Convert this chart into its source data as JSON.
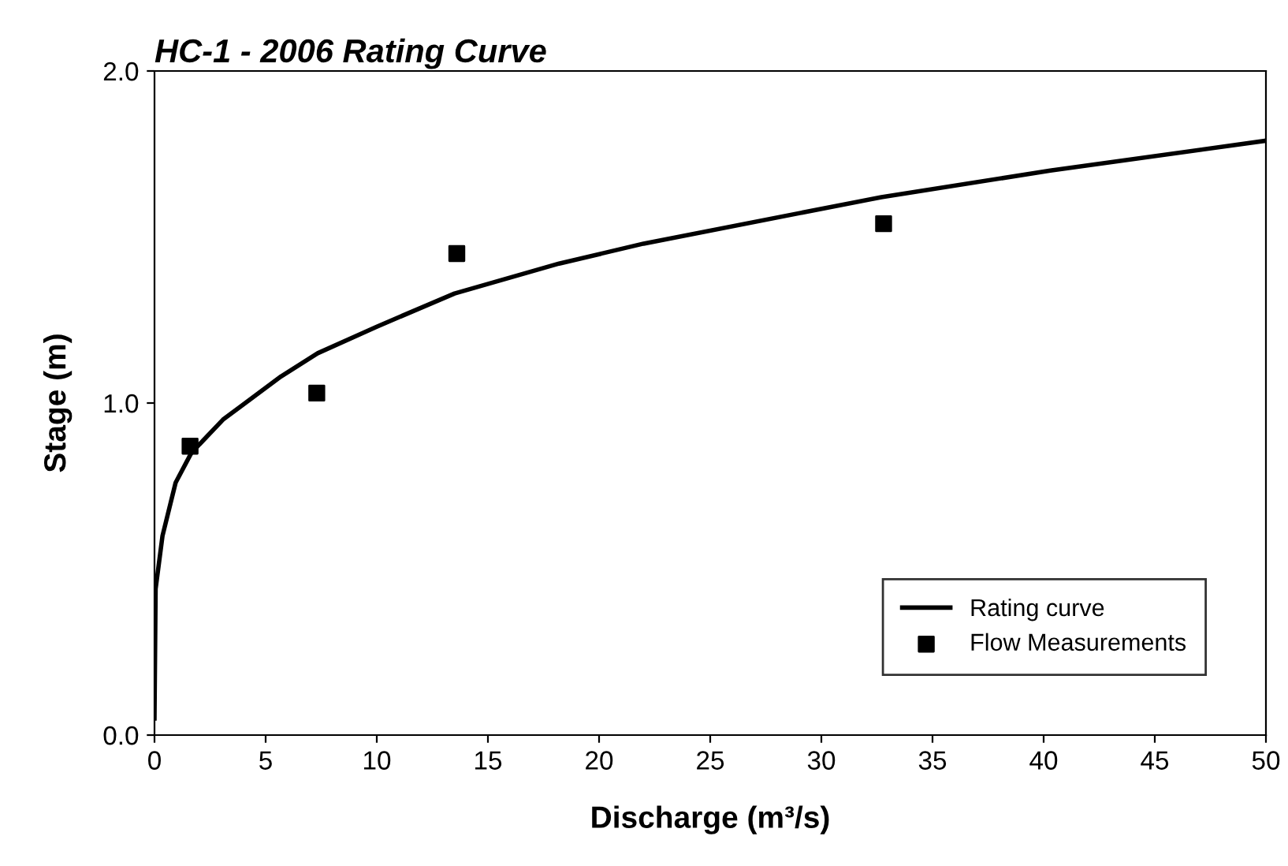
{
  "chart_data": {
    "type": "line",
    "title": "HC-1 - 2006 Rating Curve",
    "xlabel": "Discharge (m³/s)",
    "ylabel": "Stage (m)",
    "series": [
      {
        "name": "Rating curve",
        "color": "#000000",
        "marker": "none",
        "line_style": "solid",
        "x": [
          0,
          0.05,
          0.36,
          0.95,
          1.66,
          3.08,
          5.69,
          7.34,
          10.0,
          13.5,
          18.2,
          22.0,
          32.7,
          40.3,
          50
        ],
        "values": [
          0.05,
          0.44,
          0.6,
          0.76,
          0.85,
          0.95,
          1.08,
          1.15,
          1.23,
          1.33,
          1.42,
          1.48,
          1.62,
          1.7,
          1.79
        ]
      },
      {
        "name": "Flow Measurements",
        "type": "scatter",
        "color": "#000000",
        "marker": "square",
        "x": [
          1.6,
          7.3,
          13.6,
          32.8
        ],
        "values": [
          0.87,
          1.03,
          1.45,
          1.54
        ]
      }
    ],
    "xlim": [
      0,
      50
    ],
    "ylim": [
      0,
      2
    ],
    "xticks": [
      0,
      5,
      10,
      15,
      20,
      25,
      30,
      35,
      40,
      45,
      50
    ],
    "yticks": [
      {
        "value": 0,
        "label": "0.0"
      },
      {
        "value": 1,
        "label": "1.0"
      },
      {
        "value": 2,
        "label": "2.0"
      }
    ],
    "grid": false,
    "legend": "lower right"
  }
}
